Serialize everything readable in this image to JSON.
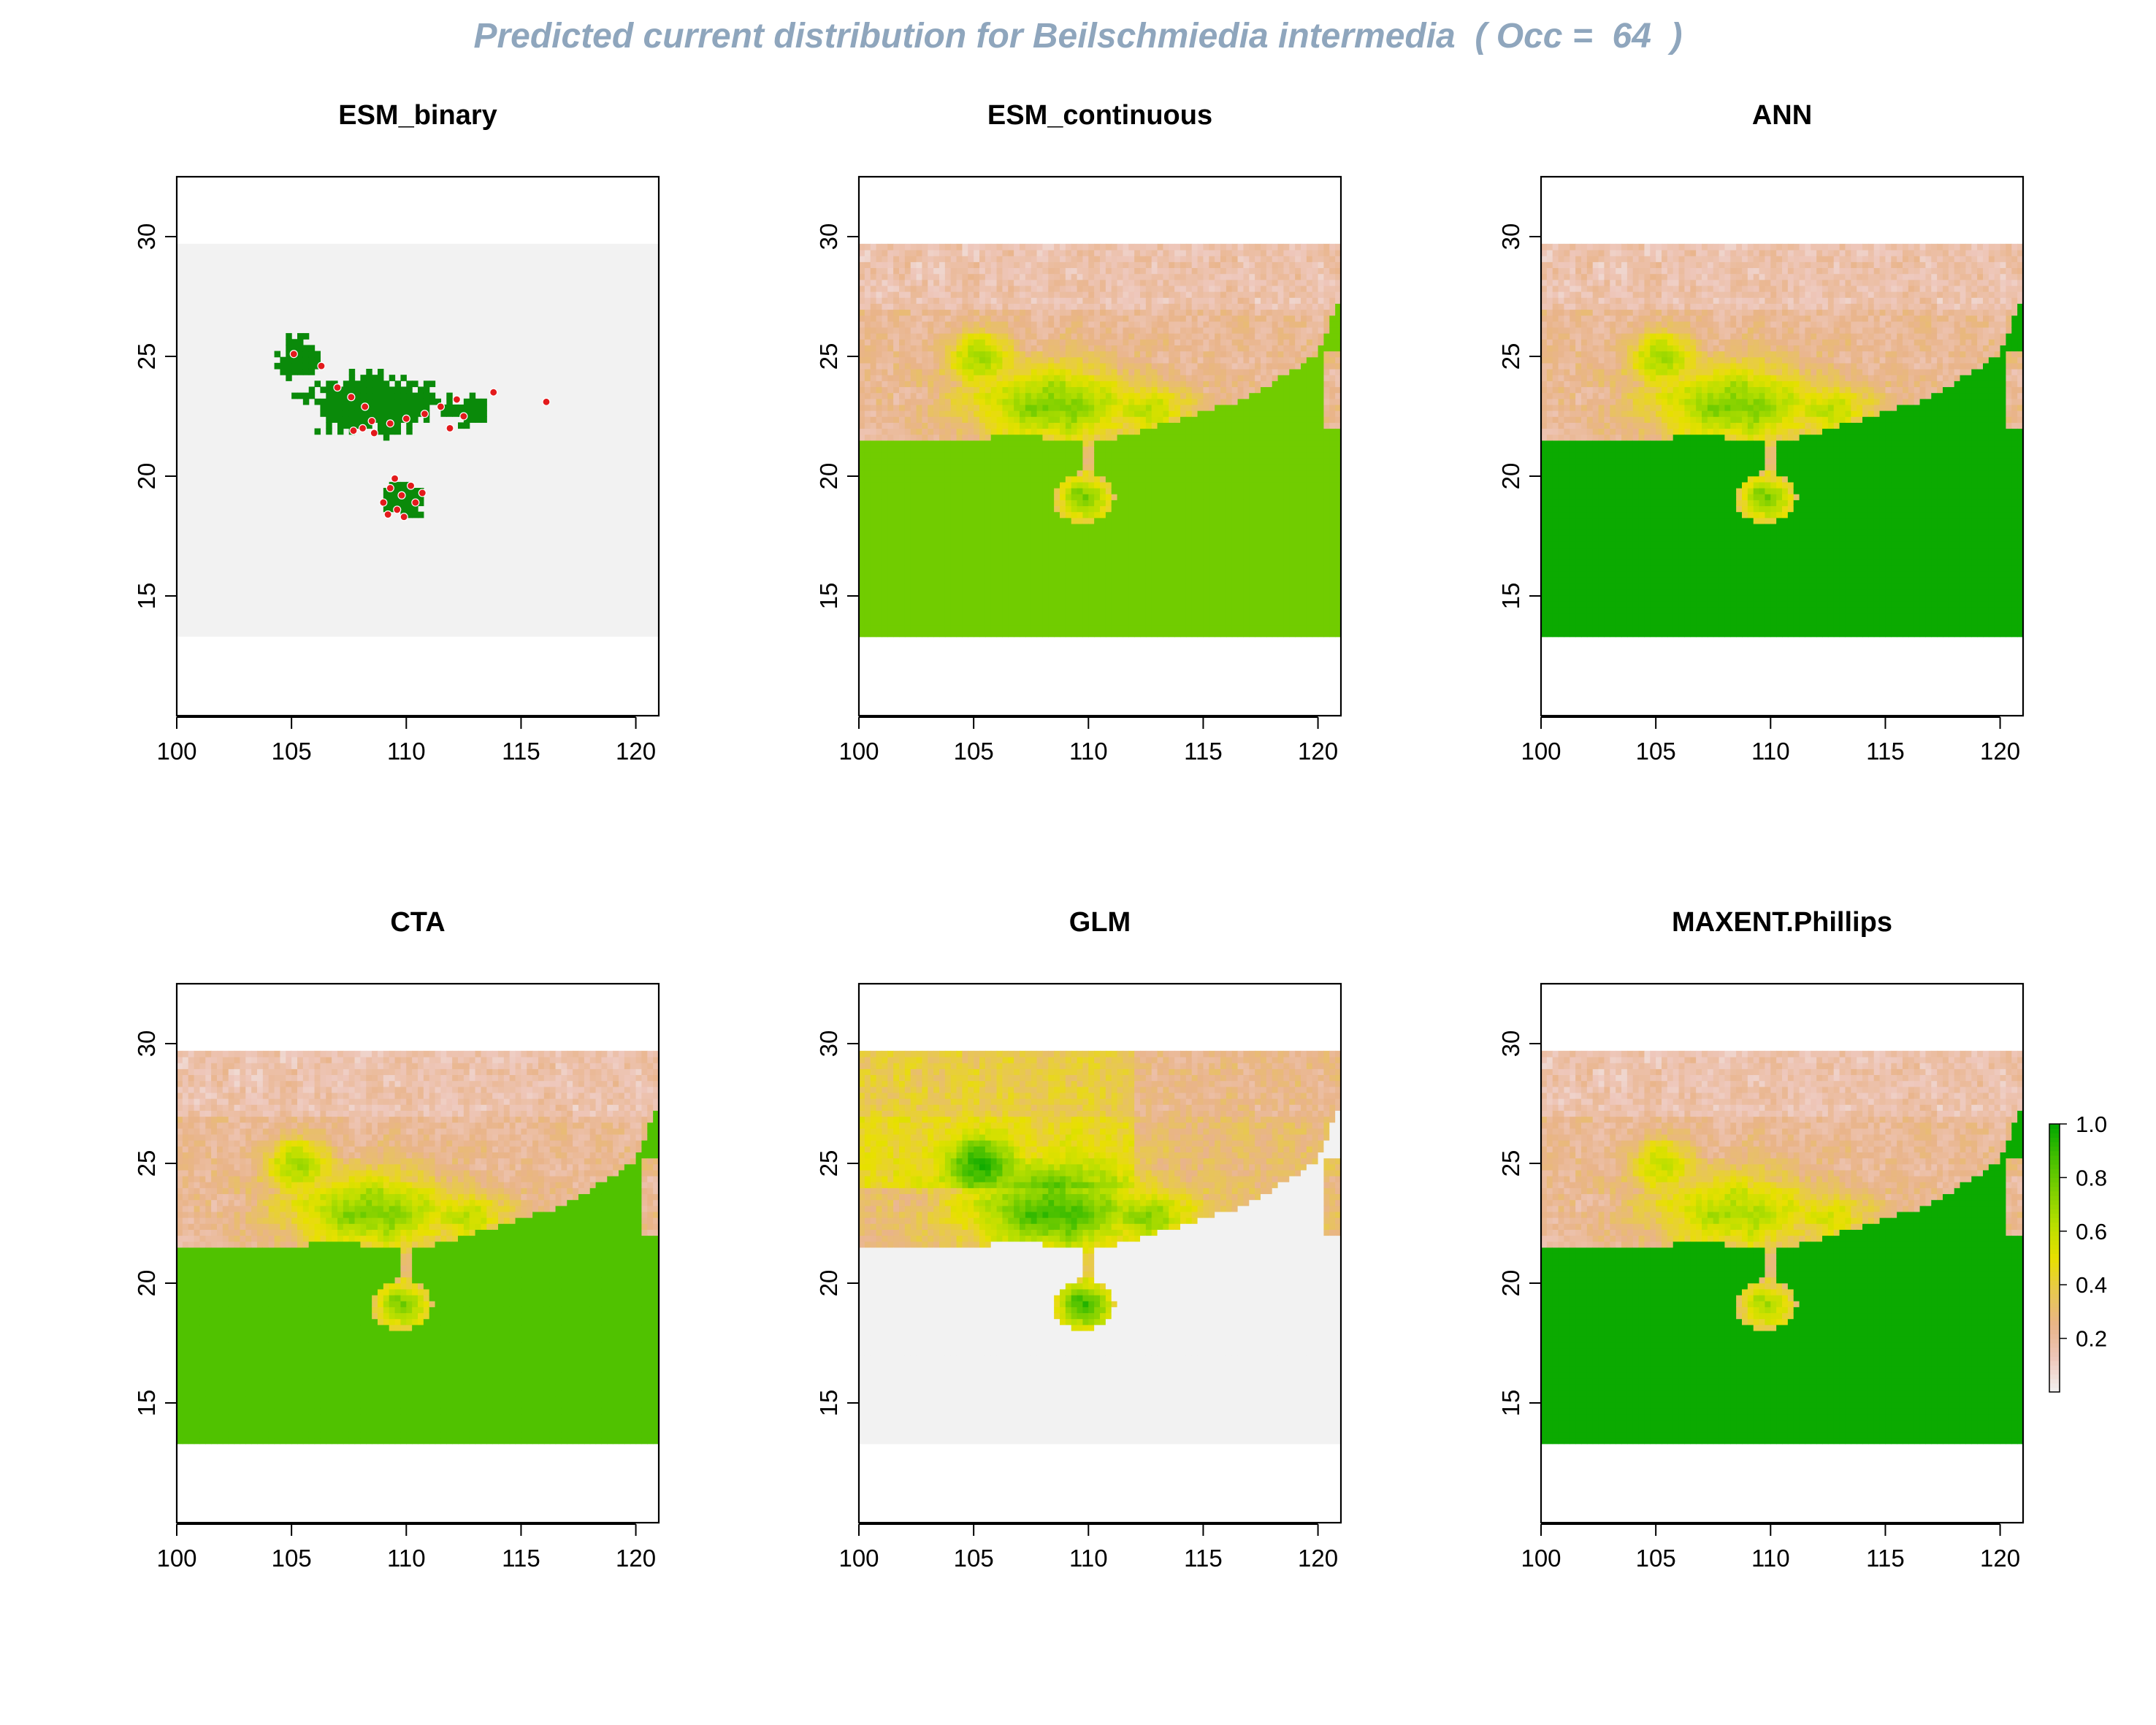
{
  "title": "Predicted current distribution for Beilschmiedia intermedia  ( Occ =  64  )",
  "colors": {
    "title": "#8fa6bd",
    "no_data_background": "#f2f2f2",
    "ocean": "#ffffff",
    "esm_binary_presence": "#0a8a0a",
    "occurrence_point": "#e31a1c",
    "ramp": [
      "#f2f2f2",
      "#eec7bb",
      "#e9b489",
      "#e8c850",
      "#e8e000",
      "#b8df00",
      "#7fd000",
      "#44bf00",
      "#00a600"
    ]
  },
  "chart_data": [
    {
      "type": "heatmap",
      "title": "ESM_binary",
      "xlabel": "",
      "ylabel": "",
      "xlim": [
        100,
        121
      ],
      "ylim": [
        10,
        32.5
      ],
      "x_ticks": [
        "100",
        "105",
        "110",
        "115",
        "120"
      ],
      "y_ticks": [
        "15",
        "20",
        "25",
        "30"
      ],
      "raster_extent": {
        "lon": [
          100,
          121
        ],
        "lat": [
          13.3,
          29.7
        ]
      },
      "values_summary": "binary presence (green) over absence (grey)",
      "occurrence_points": [
        [
          105.1,
          25.1
        ],
        [
          106.3,
          24.6
        ],
        [
          107.0,
          23.7
        ],
        [
          107.6,
          23.3
        ],
        [
          108.2,
          22.9
        ],
        [
          108.5,
          22.3
        ],
        [
          108.1,
          22.0
        ],
        [
          107.7,
          21.9
        ],
        [
          108.6,
          21.8
        ],
        [
          109.3,
          22.2
        ],
        [
          110.0,
          22.4
        ],
        [
          110.8,
          22.6
        ],
        [
          111.5,
          22.9
        ],
        [
          112.2,
          23.2
        ],
        [
          112.5,
          22.5
        ],
        [
          111.9,
          22.0
        ],
        [
          113.8,
          23.5
        ],
        [
          116.1,
          23.1
        ],
        [
          109.3,
          19.5
        ],
        [
          109.8,
          19.2
        ],
        [
          110.2,
          19.6
        ],
        [
          109.0,
          18.9
        ],
        [
          109.6,
          18.6
        ],
        [
          110.4,
          18.9
        ],
        [
          109.9,
          18.3
        ],
        [
          109.2,
          18.4
        ],
        [
          110.7,
          19.3
        ],
        [
          109.5,
          19.9
        ]
      ]
    },
    {
      "type": "heatmap",
      "title": "ESM_continuous",
      "xlabel": "",
      "ylabel": "",
      "xlim": [
        100,
        121
      ],
      "ylim": [
        10,
        32.5
      ],
      "x_ticks": [
        "100",
        "105",
        "110",
        "115",
        "120"
      ],
      "y_ticks": [
        "15",
        "20",
        "25",
        "30"
      ],
      "raster_extent": {
        "lon": [
          100,
          121
        ],
        "lat": [
          13.3,
          29.7
        ]
      },
      "values_summary": "ocean ~0.75, land 0.2-0.85"
    },
    {
      "type": "heatmap",
      "title": "ANN",
      "xlabel": "",
      "ylabel": "",
      "xlim": [
        100,
        121
      ],
      "ylim": [
        10,
        32.5
      ],
      "x_ticks": [
        "100",
        "105",
        "110",
        "115",
        "120"
      ],
      "y_ticks": [
        "15",
        "20",
        "25",
        "30"
      ],
      "raster_extent": {
        "lon": [
          100,
          121
        ],
        "lat": [
          13.3,
          29.7
        ]
      },
      "values_summary": "ocean ~1.0, land 0.2-0.8"
    },
    {
      "type": "heatmap",
      "title": "CTA",
      "xlabel": "",
      "ylabel": "",
      "xlim": [
        100,
        121
      ],
      "ylim": [
        10,
        32.5
      ],
      "x_ticks": [
        "100",
        "105",
        "110",
        "115",
        "120"
      ],
      "y_ticks": [
        "15",
        "20",
        "25",
        "30"
      ],
      "raster_extent": {
        "lon": [
          100,
          121
        ],
        "lat": [
          13.3,
          29.7
        ]
      },
      "values_summary": "ocean ~0.8, land 0.2-0.85"
    },
    {
      "type": "heatmap",
      "title": "GLM",
      "xlabel": "",
      "ylabel": "",
      "xlim": [
        100,
        121
      ],
      "ylim": [
        10,
        32.5
      ],
      "x_ticks": [
        "100",
        "105",
        "110",
        "115",
        "120"
      ],
      "y_ticks": [
        "15",
        "20",
        "25",
        "30"
      ],
      "raster_extent": {
        "lon": [
          100,
          121
        ],
        "lat": [
          13.3,
          29.7
        ]
      },
      "values_summary": "ocean ~0.0, land 0.3-0.9"
    },
    {
      "type": "heatmap",
      "title": "MAXENT.Phillips",
      "xlabel": "",
      "ylabel": "",
      "xlim": [
        100,
        121
      ],
      "ylim": [
        10,
        32.5
      ],
      "x_ticks": [
        "100",
        "105",
        "110",
        "115",
        "120"
      ],
      "y_ticks": [
        "15",
        "20",
        "25",
        "30"
      ],
      "raster_extent": {
        "lon": [
          100,
          121
        ],
        "lat": [
          13.3,
          29.7
        ]
      },
      "values_summary": "ocean ~1.0, land 0.2-0.75",
      "legend": {
        "ticks": [
          "0.2",
          "0.4",
          "0.6",
          "0.8",
          "1.0"
        ],
        "range": [
          0.0,
          1.0
        ]
      }
    }
  ]
}
